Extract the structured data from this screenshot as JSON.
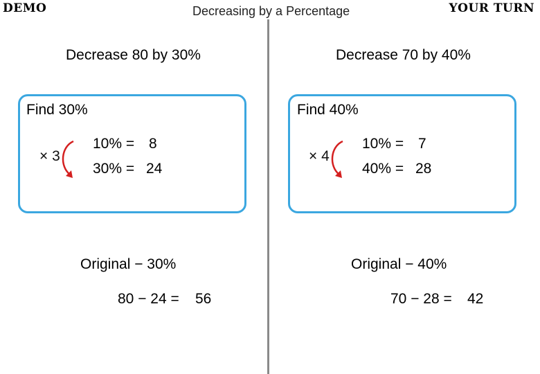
{
  "header": {
    "left_label": "DEMO",
    "title": "Decreasing by a Percentage",
    "right_label": "YOUR TURN"
  },
  "left": {
    "heading": "Decrease 80 by 30%",
    "box": {
      "find_label": "Find 30%",
      "multiplier": "× 3",
      "line1_lhs": "10% =",
      "line1_val": "8",
      "line2_lhs": "30% =",
      "line2_val": "24"
    },
    "subtraction_label": "Original − 30%",
    "calc_lhs": "80 − 24 =",
    "calc_result": "56"
  },
  "right": {
    "heading": "Decrease 70 by 40%",
    "box": {
      "find_label": "Find 40%",
      "multiplier": "× 4",
      "line1_lhs": "10% =",
      "line1_val": "7",
      "line2_lhs": "40% =",
      "line2_val": "28"
    },
    "subtraction_label": "Original − 40%",
    "calc_lhs": "70 − 28 =",
    "calc_result": "42"
  },
  "colors": {
    "box_border": "#3ba7e0",
    "arrow": "#d42020",
    "divider": "#8a8a8a"
  },
  "icons": {
    "arrow": "curved-arrow-icon"
  }
}
